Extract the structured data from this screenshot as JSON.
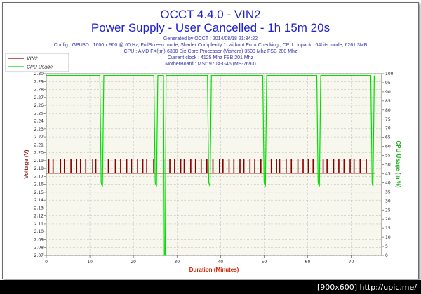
{
  "header": {
    "title": "OCCT 4.4.0 - VIN2",
    "subtitle": "Power Supply - User Cancelled - 1h 15m 20s",
    "info_lines": [
      "Generated by OCCT : 2014/08/18 21:34:22",
      "Config : GPU3D : 1600 x 900 @ 60 Hz, FullScreen mode, Shader Complexity 1, without Error Checking ; CPU:Linpack : 64bits mode, 6261.3MB",
      "CPU : AMD FX(tm)-6300 Six-Core Processor (Vishera) 3500 Mhz FSB 200 Mhz",
      "Current clock : 4125 Mhz FSB 201 Mhz",
      "MotherBoard : MSI: 970A-G46 (MS-7693)"
    ]
  },
  "footer": {
    "watermark": "[900x600] http://upic.me/"
  },
  "chart_data": {
    "type": "line",
    "xlabel": "Duration (Minutes)",
    "ylabel_left": "Voltage (V)",
    "ylabel_right": "CPU Usage (in %)",
    "xlim": [
      0,
      77
    ],
    "ylim_left": [
      2.07,
      2.3
    ],
    "ylim_right": [
      0,
      100
    ],
    "x_ticks": [
      0,
      10,
      20,
      30,
      40,
      50,
      60,
      70
    ],
    "y_ticks_left": [
      2.07,
      2.08,
      2.09,
      2.1,
      2.11,
      2.12,
      2.13,
      2.14,
      2.15,
      2.16,
      2.17,
      2.18,
      2.19,
      2.2,
      2.21,
      2.22,
      2.23,
      2.24,
      2.25,
      2.26,
      2.27,
      2.28,
      2.29,
      2.3
    ],
    "y_ticks_right": [
      0,
      5,
      10,
      15,
      20,
      25,
      30,
      35,
      40,
      45,
      50,
      55,
      60,
      65,
      70,
      75,
      80,
      85,
      90,
      95,
      100
    ],
    "grid": true,
    "legend_position": "top-left",
    "series": [
      {
        "name": "VIN2",
        "color": "#8b0000",
        "axis": "left",
        "baseline": 2.174,
        "spike_value": 2.192,
        "spikes": [
          0.5,
          1.5,
          3.2,
          4.1,
          5.6,
          6.9,
          7.8,
          9.0,
          10.6,
          11.3,
          14.2,
          15.8,
          17.0,
          18.4,
          19.5,
          20.9,
          22.1,
          23.0,
          24.6,
          26.9,
          28.3,
          29.4,
          30.8,
          31.6,
          33.1,
          34.2,
          35.5,
          36.8,
          38.2,
          39.7,
          40.5,
          41.9,
          43.0,
          44.4,
          45.3,
          46.7,
          47.8,
          49.2,
          51.6,
          52.8,
          53.5,
          55.0,
          56.2,
          57.7,
          58.9,
          60.1,
          61.2,
          63.5,
          64.4,
          65.9,
          67.1,
          68.3,
          69.7,
          70.6,
          72.0,
          73.4
        ]
      },
      {
        "name": "CPU Usage",
        "color": "#00dd00",
        "axis": "right",
        "points": [
          [
            0,
            99
          ],
          [
            12.3,
            99
          ],
          [
            12.6,
            40
          ],
          [
            12.9,
            38
          ],
          [
            13.2,
            99
          ],
          [
            24.7,
            99
          ],
          [
            25.0,
            40
          ],
          [
            25.3,
            38
          ],
          [
            25.6,
            99
          ],
          [
            26.9,
            99
          ],
          [
            27.1,
            0
          ],
          [
            27.3,
            0
          ],
          [
            27.5,
            99
          ],
          [
            37.0,
            99
          ],
          [
            37.3,
            40
          ],
          [
            37.6,
            38
          ],
          [
            37.9,
            99
          ],
          [
            49.7,
            99
          ],
          [
            50.0,
            40
          ],
          [
            50.3,
            38
          ],
          [
            50.6,
            99
          ],
          [
            62.1,
            99
          ],
          [
            62.4,
            40
          ],
          [
            62.7,
            38
          ],
          [
            63.0,
            99
          ],
          [
            74.5,
            99
          ],
          [
            74.8,
            40
          ],
          [
            75.0,
            38
          ],
          [
            75.3,
            99
          ]
        ]
      }
    ]
  }
}
